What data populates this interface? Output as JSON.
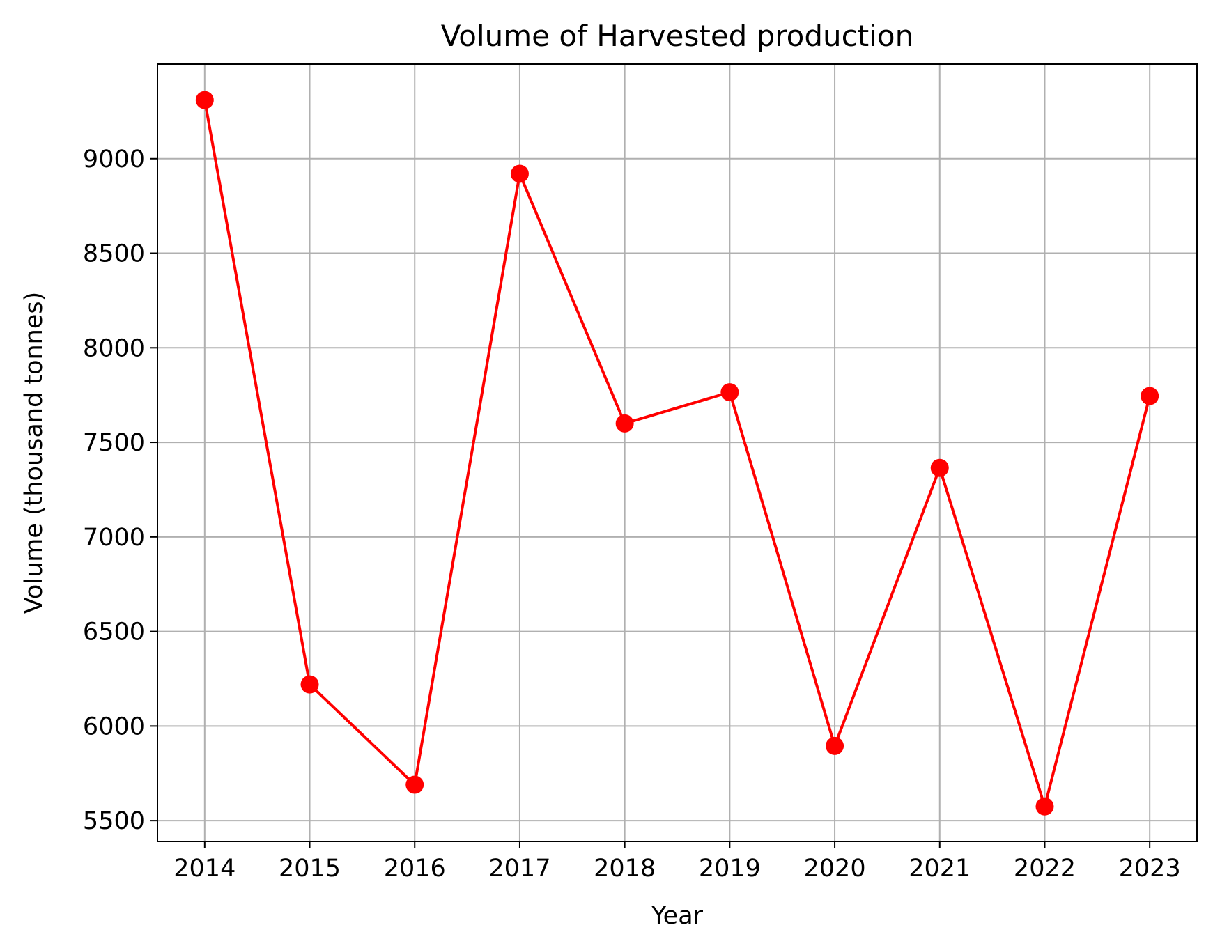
{
  "chart_data": {
    "type": "line",
    "title": "Volume of Harvested production",
    "xlabel": "Year",
    "ylabel": "Volume (thousand tonnes)",
    "x": [
      2014,
      2015,
      2016,
      2017,
      2018,
      2019,
      2020,
      2021,
      2022,
      2023
    ],
    "x_tick_labels": [
      "2014",
      "2015",
      "2016",
      "2017",
      "2018",
      "2019",
      "2020",
      "2021",
      "2022",
      "2023"
    ],
    "y_ticks": [
      5500,
      6000,
      6500,
      7000,
      7500,
      8000,
      8500,
      9000
    ],
    "y_tick_labels": [
      "5500",
      "6000",
      "6500",
      "7000",
      "7500",
      "8000",
      "8500",
      "9000"
    ],
    "ylim": [
      5390,
      9500
    ],
    "xlim": [
      2013.55,
      2023.45
    ],
    "grid": true,
    "series": [
      {
        "values": [
          9310,
          6220,
          5690,
          8920,
          7600,
          7765,
          5895,
          7365,
          5575,
          7745
        ],
        "color": "#ff0000",
        "marker": "circle"
      }
    ],
    "grid_color": "#b0b0b0",
    "axis_color": "#000000"
  }
}
